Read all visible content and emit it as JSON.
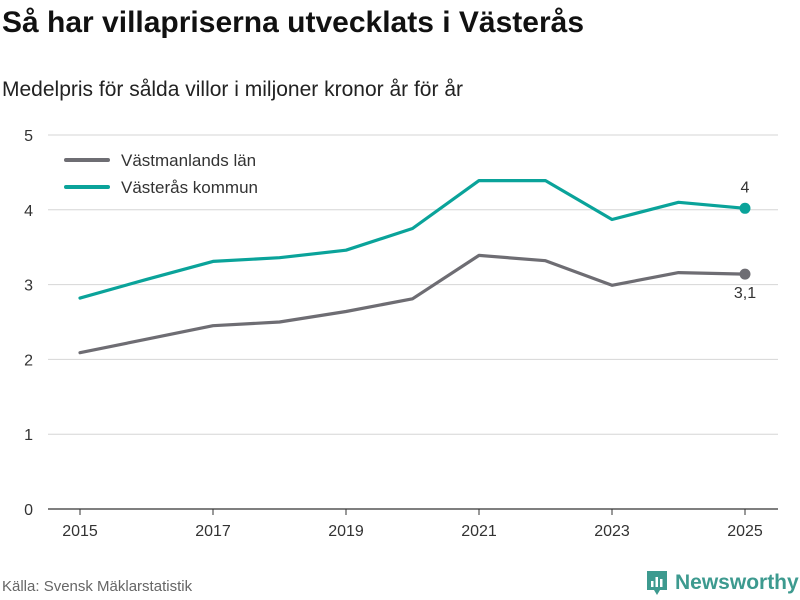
{
  "title": "Så har villapriserna utvecklats i Västerås",
  "subtitle": "Medelpris för sålda villor i miljoner kronor år för år",
  "source": "Källa: Svensk Mäklarstatistik",
  "brand": "Newsworthy",
  "chart_data": {
    "type": "line",
    "x": [
      2015,
      2016,
      2017,
      2018,
      2019,
      2020,
      2021,
      2022,
      2023,
      2024,
      2025
    ],
    "xticks": [
      2015,
      2017,
      2019,
      2021,
      2023,
      2025
    ],
    "ylim": [
      0,
      5
    ],
    "yticks": [
      0,
      1,
      2,
      3,
      4,
      5
    ],
    "grid": true,
    "legend_position": "top-left",
    "series": [
      {
        "name": "Västmanlands län",
        "color": "#6e6d73",
        "values": [
          2.09,
          2.27,
          2.45,
          2.5,
          2.64,
          2.81,
          3.39,
          3.32,
          2.99,
          3.16,
          3.14
        ],
        "end_label": "3,1"
      },
      {
        "name": "Västerås kommun",
        "color": "#0aa39a",
        "values": [
          2.82,
          3.07,
          3.31,
          3.36,
          3.46,
          3.75,
          4.39,
          4.39,
          3.87,
          4.1,
          4.02
        ],
        "end_label": "4"
      }
    ]
  }
}
